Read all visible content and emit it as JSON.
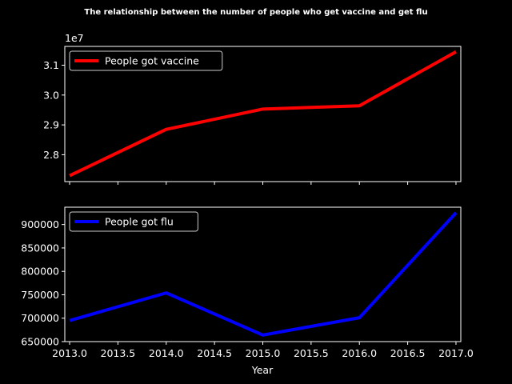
{
  "chart_data": {
    "type": "line",
    "title": "The relationship between the number of people who get vaccine and get flu",
    "xlabel": "Year",
    "x": [
      2013,
      2014,
      2015,
      2016,
      2017
    ],
    "xlim": [
      2012.95,
      2017.05
    ],
    "x_ticks": [
      2013.0,
      2013.5,
      2014.0,
      2014.5,
      2015.0,
      2015.5,
      2016.0,
      2016.5,
      2017.0
    ],
    "x_tick_labels": [
      "2013.0",
      "2013.5",
      "2014.0",
      "2014.5",
      "2015.0",
      "2015.5",
      "2016.0",
      "2016.5",
      "2017.0"
    ],
    "grid": false,
    "subplots": [
      {
        "series": [
          {
            "name": "People got vaccine",
            "color": "#ff0000",
            "values": [
              27300000,
              28850000,
              29530000,
              29640000,
              31450000
            ]
          }
        ],
        "ylim": [
          27100000,
          31630000
        ],
        "y_ticks": [
          28000000,
          29000000,
          30000000,
          31000000
        ],
        "y_tick_labels": [
          "2.8",
          "2.9",
          "3.0",
          "3.1"
        ],
        "offset_text": "1e7",
        "legend": "upper-left"
      },
      {
        "series": [
          {
            "name": "People got flu",
            "color": "#0000ff",
            "values": [
              695000,
              754000,
              664000,
              701000,
              925000
            ]
          }
        ],
        "ylim": [
          650000,
          937000
        ],
        "y_ticks": [
          650000,
          700000,
          750000,
          800000,
          850000,
          900000
        ],
        "y_tick_labels": [
          "650000",
          "700000",
          "750000",
          "800000",
          "850000",
          "900000"
        ],
        "legend": "upper-left"
      }
    ]
  }
}
